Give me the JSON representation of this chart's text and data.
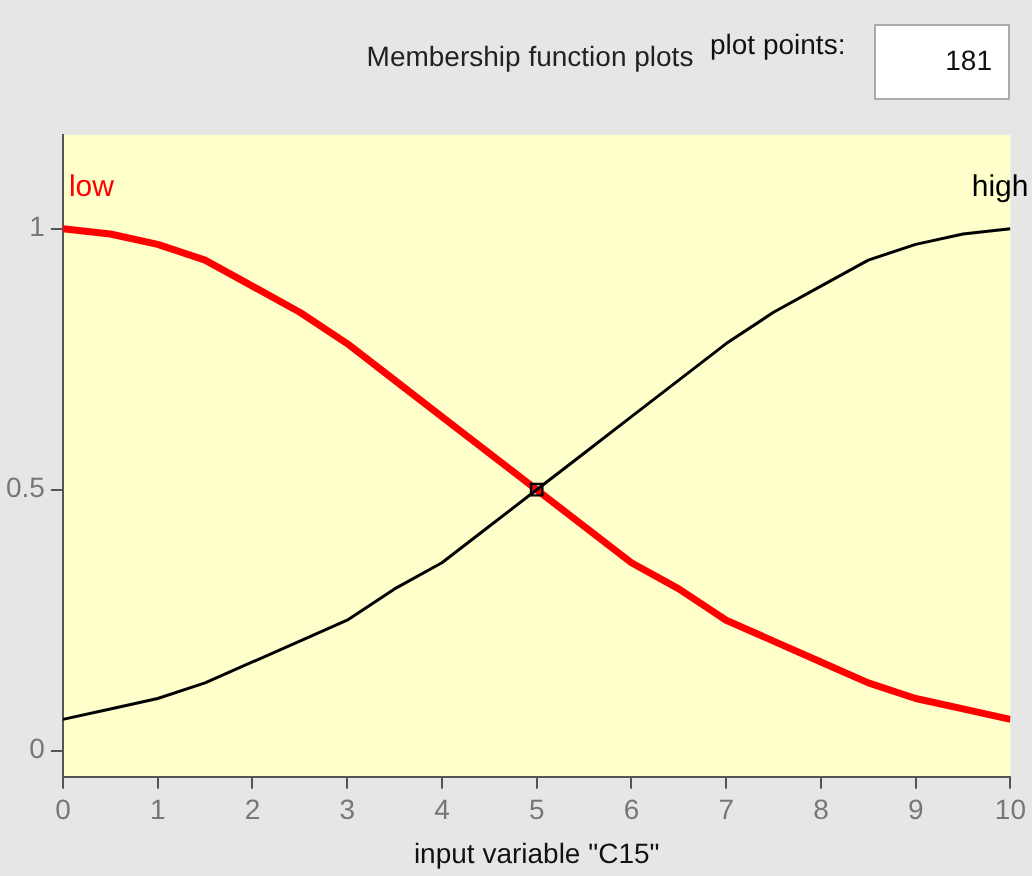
{
  "chart_data": {
    "type": "line",
    "title": "Membership function plots",
    "xlabel": "input variable \"C15\"",
    "annotations": [
      "plot points:",
      "181"
    ],
    "x": [
      0,
      0.5,
      1,
      1.5,
      2,
      2.5,
      3,
      3.5,
      4,
      4.5,
      5,
      5.5,
      6,
      6.5,
      7,
      7.5,
      8,
      8.5,
      9,
      9.5,
      10
    ],
    "series": [
      {
        "name": "low",
        "color": "#ff0000",
        "values": [
          1,
          0.99,
          0.97,
          0.94,
          0.89,
          0.84,
          0.78,
          0.71,
          0.64,
          0.57,
          0.5,
          0.43,
          0.36,
          0.31,
          0.25,
          0.21,
          0.17,
          0.13,
          0.1,
          0.08,
          0.06
        ]
      },
      {
        "name": "high",
        "color": "#000000",
        "values": [
          0.06,
          0.08,
          0.1,
          0.13,
          0.17,
          0.21,
          0.25,
          0.31,
          0.36,
          0.43,
          0.5,
          0.57,
          0.64,
          0.71,
          0.78,
          0.84,
          0.89,
          0.94,
          0.97,
          0.99,
          1
        ]
      },
      {
        "type": "scatter",
        "marker": "square",
        "color": "#000000",
        "x": [
          5
        ],
        "values": [
          0.5
        ]
      }
    ],
    "xlim": [
      0,
      10
    ],
    "xticks": [
      0,
      1,
      2,
      3,
      4,
      5,
      6,
      7,
      8,
      9,
      10
    ],
    "ylim": [
      -0.05,
      1.18
    ],
    "yticks": [
      0,
      0.5,
      1
    ],
    "grid": false,
    "legend": false,
    "marker": "none",
    "line_style": "solid"
  }
}
